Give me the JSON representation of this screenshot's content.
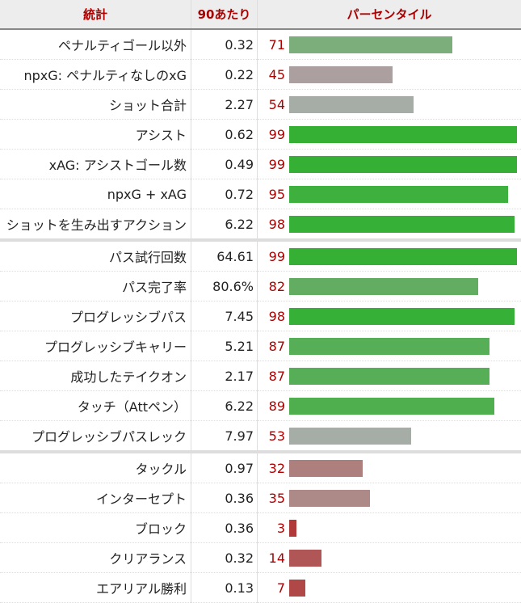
{
  "header": {
    "stat": "統計",
    "per90": "90あたり",
    "percentile": "パーセンタイル"
  },
  "rows": [
    {
      "stat": "ペナルティゴール以外",
      "per90": "0.32",
      "pct": 71,
      "color": "#7bae7b",
      "sep": false
    },
    {
      "stat": "npxG: ペナルティなしのxG",
      "per90": "0.22",
      "pct": 45,
      "color": "#aba09f",
      "sep": false
    },
    {
      "stat": "ショット合計",
      "per90": "2.27",
      "pct": 54,
      "color": "#a6ada6",
      "sep": false
    },
    {
      "stat": "アシスト",
      "per90": "0.62",
      "pct": 99,
      "color": "#35b035",
      "sep": false
    },
    {
      "stat": "xAG: アシストゴール数",
      "per90": "0.49",
      "pct": 99,
      "color": "#35b035",
      "sep": false
    },
    {
      "stat": "npxG + xAG",
      "per90": "0.72",
      "pct": 95,
      "color": "#3db03d",
      "sep": false
    },
    {
      "stat": "ショットを生み出すアクション",
      "per90": "6.22",
      "pct": 98,
      "color": "#36b036",
      "sep": false
    },
    {
      "stat": "パス試行回数",
      "per90": "64.61",
      "pct": 99,
      "color": "#35b035",
      "sep": true
    },
    {
      "stat": "パス完了率",
      "per90": "80.6%",
      "pct": 82,
      "color": "#62ad62",
      "sep": false
    },
    {
      "stat": "プログレッシブパス",
      "per90": "7.45",
      "pct": 98,
      "color": "#36b036",
      "sep": false
    },
    {
      "stat": "プログレッシブキャリー",
      "per90": "5.21",
      "pct": 87,
      "color": "#56ae56",
      "sep": false
    },
    {
      "stat": "成功したテイクオン",
      "per90": "2.17",
      "pct": 87,
      "color": "#56ae56",
      "sep": false
    },
    {
      "stat": "タッチ（Attペン）",
      "per90": "6.22",
      "pct": 89,
      "color": "#4faf4f",
      "sep": false
    },
    {
      "stat": "プログレッシブパスレック",
      "per90": "7.97",
      "pct": 53,
      "color": "#a6ada6",
      "sep": false
    },
    {
      "stat": "タックル",
      "per90": "0.97",
      "pct": 32,
      "color": "#ad7f7d",
      "sep": true
    },
    {
      "stat": "インターセプト",
      "per90": "0.36",
      "pct": 35,
      "color": "#ad8a88",
      "sep": false
    },
    {
      "stat": "ブロック",
      "per90": "0.36",
      "pct": 3,
      "color": "#b03a3a",
      "sep": false
    },
    {
      "stat": "クリアランス",
      "per90": "0.32",
      "pct": 14,
      "color": "#b05656",
      "sep": false
    },
    {
      "stat": "エアリアル勝利",
      "per90": "0.13",
      "pct": 7,
      "color": "#b04848",
      "sep": false
    }
  ]
}
